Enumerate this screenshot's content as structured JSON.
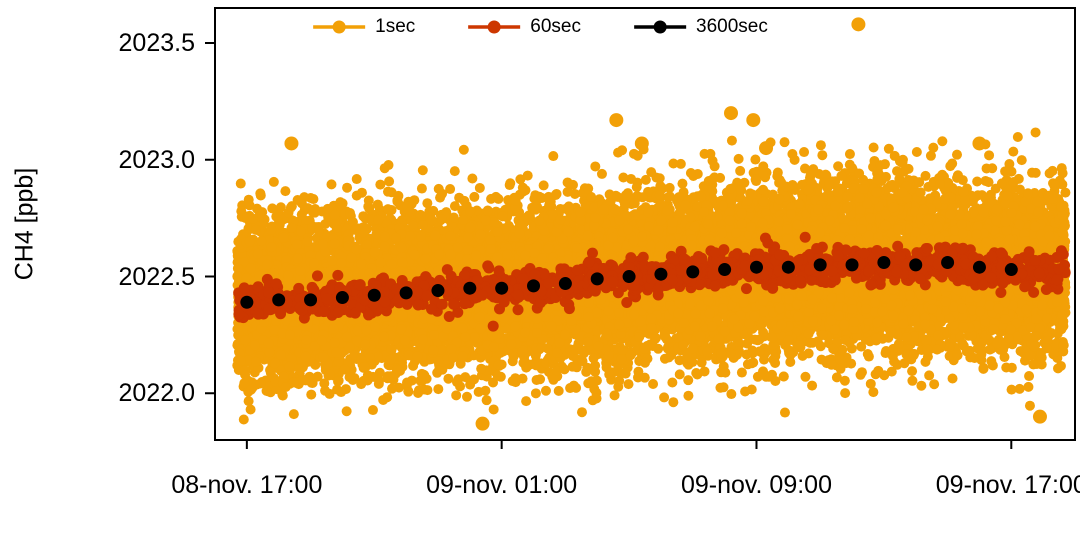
{
  "chart_data": {
    "type": "scatter",
    "title": "",
    "xlabel": "",
    "ylabel": "CH4 [ppb]",
    "ylim": [
      2021.8,
      2023.65
    ],
    "x_hour_range": [
      -1,
      26
    ],
    "grid": false,
    "y_ticks": [
      {
        "value": 2022.0,
        "label": "2022.0"
      },
      {
        "value": 2022.5,
        "label": "2022.5"
      },
      {
        "value": 2023.0,
        "label": "2023.0"
      },
      {
        "value": 2023.5,
        "label": "2023.5"
      }
    ],
    "x_ticks": [
      {
        "hour": 0,
        "label": "08-nov. 17:00"
      },
      {
        "hour": 8,
        "label": "09-nov. 01:00"
      },
      {
        "hour": 16,
        "label": "09-nov. 09:00"
      },
      {
        "hour": 24,
        "label": "09-nov. 17:00"
      }
    ],
    "legend": {
      "position": "top-center",
      "entries": [
        {
          "label": "1sec",
          "color": "#F2A007"
        },
        {
          "label": "60sec",
          "color": "#CD3700"
        },
        {
          "label": "3600sec",
          "color": "#000000"
        }
      ]
    },
    "series": [
      {
        "name": "1sec",
        "color": "#F2A007",
        "kind": "noise-cloud",
        "n_points": 16000,
        "sd": 0.17,
        "t_start": -0.3,
        "t_end": 25.7,
        "point_radius": 5,
        "y_clip_min": 2021.86,
        "y_clip_max": 2023.12
      },
      {
        "name": "60sec",
        "color": "#CD3700",
        "kind": "noise-cloud",
        "n_points": 1500,
        "sd": 0.035,
        "t_start": -0.3,
        "t_end": 25.7,
        "point_radius": 5.5
      },
      {
        "name": "3600sec",
        "color": "#000000",
        "kind": "hourly-means",
        "point_radius": 6.5,
        "hours": [
          0,
          1,
          2,
          3,
          4,
          5,
          6,
          7,
          8,
          9,
          10,
          11,
          12,
          13,
          14,
          15,
          16,
          17,
          18,
          19,
          20,
          21,
          22,
          23,
          24
        ],
        "values": [
          2022.39,
          2022.4,
          2022.4,
          2022.41,
          2022.42,
          2022.43,
          2022.44,
          2022.45,
          2022.45,
          2022.46,
          2022.47,
          2022.49,
          2022.5,
          2022.51,
          2022.52,
          2022.53,
          2022.54,
          2022.54,
          2022.55,
          2022.55,
          2022.56,
          2022.55,
          2022.56,
          2022.54,
          2022.53
        ]
      }
    ],
    "outliers_1sec": [
      [
        1.4,
        2023.07
      ],
      [
        7.4,
        2021.87
      ],
      [
        11.6,
        2023.17
      ],
      [
        12.4,
        2023.07
      ],
      [
        15.2,
        2023.2
      ],
      [
        15.9,
        2023.17
      ],
      [
        16.3,
        2023.05
      ],
      [
        19.2,
        2023.58
      ],
      [
        23.0,
        2023.07
      ],
      [
        24.9,
        2021.9
      ]
    ]
  }
}
